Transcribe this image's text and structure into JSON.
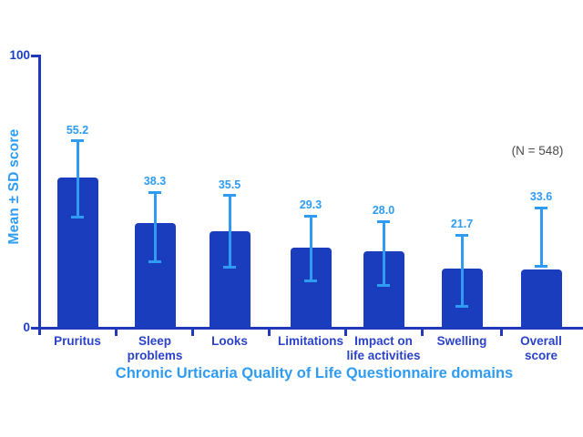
{
  "chart_data": {
    "type": "bar",
    "title": "",
    "xlabel": "Chronic Urticaria Quality of Life Questionnaire domains",
    "ylabel": "Mean ± SD score",
    "annotation": "(N = 548)",
    "ylim": [
      0,
      100
    ],
    "grid": false,
    "legend": "none",
    "yticks": [
      {
        "value": 0,
        "label": "0"
      },
      {
        "value": 100,
        "label": "100"
      }
    ],
    "categories": [
      "Pruritus",
      "Sleep\nproblems",
      "Looks",
      "Limitations",
      "Impact on\nlife activities",
      "Swelling",
      "Overall\nscore"
    ],
    "values": [
      55.2,
      38.3,
      35.5,
      29.3,
      28.0,
      21.7,
      33.6
    ],
    "value_labels": [
      "55.2",
      "38.3",
      "35.5",
      "29.3",
      "28.0",
      "21.7",
      "33.6"
    ],
    "bar_drawn_values": [
      55.2,
      38.3,
      35.5,
      29.3,
      28.0,
      21.7,
      21.3
    ],
    "error_bar_top": [
      68.6,
      49.8,
      48.5,
      41.1,
      39.1,
      34.1,
      44.1
    ],
    "error_bar_bottom": [
      40.8,
      24.1,
      22.1,
      17.1,
      15.7,
      8.0,
      22.7
    ],
    "colors": {
      "bar": "#1a3dbd",
      "axis": "#2039bb",
      "accent": "#2f9bf2",
      "category_label": "#2b43c7",
      "tick_label": "#1b3ec6",
      "annotation": "#4a4a4a",
      "background": "#ffffff"
    }
  }
}
